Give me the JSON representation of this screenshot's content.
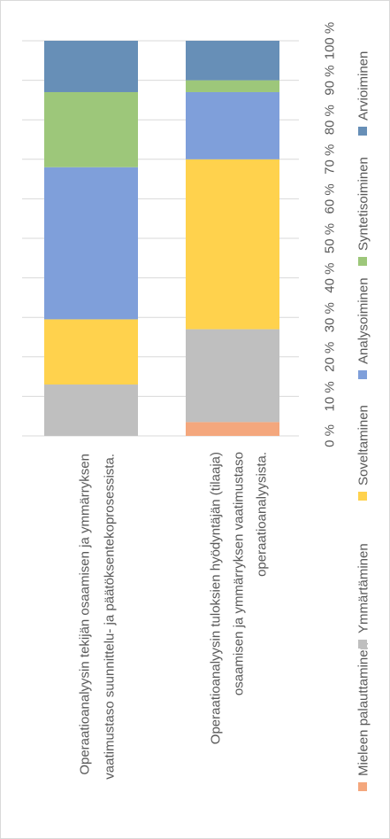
{
  "chart_data": {
    "type": "bar",
    "orientation": "stacked-100",
    "categories": [
      [
        "Operaatioanalyysin tekijän osaamisen ja ymmärryksen",
        "vaatimustaso suunnittelu- ja päätöksentekoprosessista."
      ],
      [
        "Operaatioanalyysin tuloksien hyödyntäjän (tilaaja)",
        "osaamisen ja ymmärryksen vaatimustaso",
        "operaatioanalyysista."
      ]
    ],
    "series": [
      {
        "name": "Mieleen palauttaminen",
        "color": "#F4A77D",
        "values": [
          0,
          3.5
        ]
      },
      {
        "name": "Ymmärtäminen",
        "color": "#BFBFBF",
        "values": [
          13,
          23.5
        ]
      },
      {
        "name": "Soveltaminen",
        "color": "#FFD24D",
        "values": [
          16.5,
          43
        ]
      },
      {
        "name": "Analysoiminen",
        "color": "#7F9FDA",
        "values": [
          38.5,
          17
        ]
      },
      {
        "name": "Syntetisoiminen",
        "color": "#9DC77A",
        "values": [
          19,
          3
        ]
      },
      {
        "name": "Arvioiminen",
        "color": "#678FB7",
        "values": [
          13,
          10
        ]
      }
    ],
    "ticks": [
      "0 %",
      "10 %",
      "20 %",
      "30 %",
      "40 %",
      "50 %",
      "60 %",
      "70 %",
      "80 %",
      "90 %",
      "100 %"
    ],
    "ylim": [
      0,
      100
    ],
    "grid": true,
    "legend_position": "right"
  }
}
